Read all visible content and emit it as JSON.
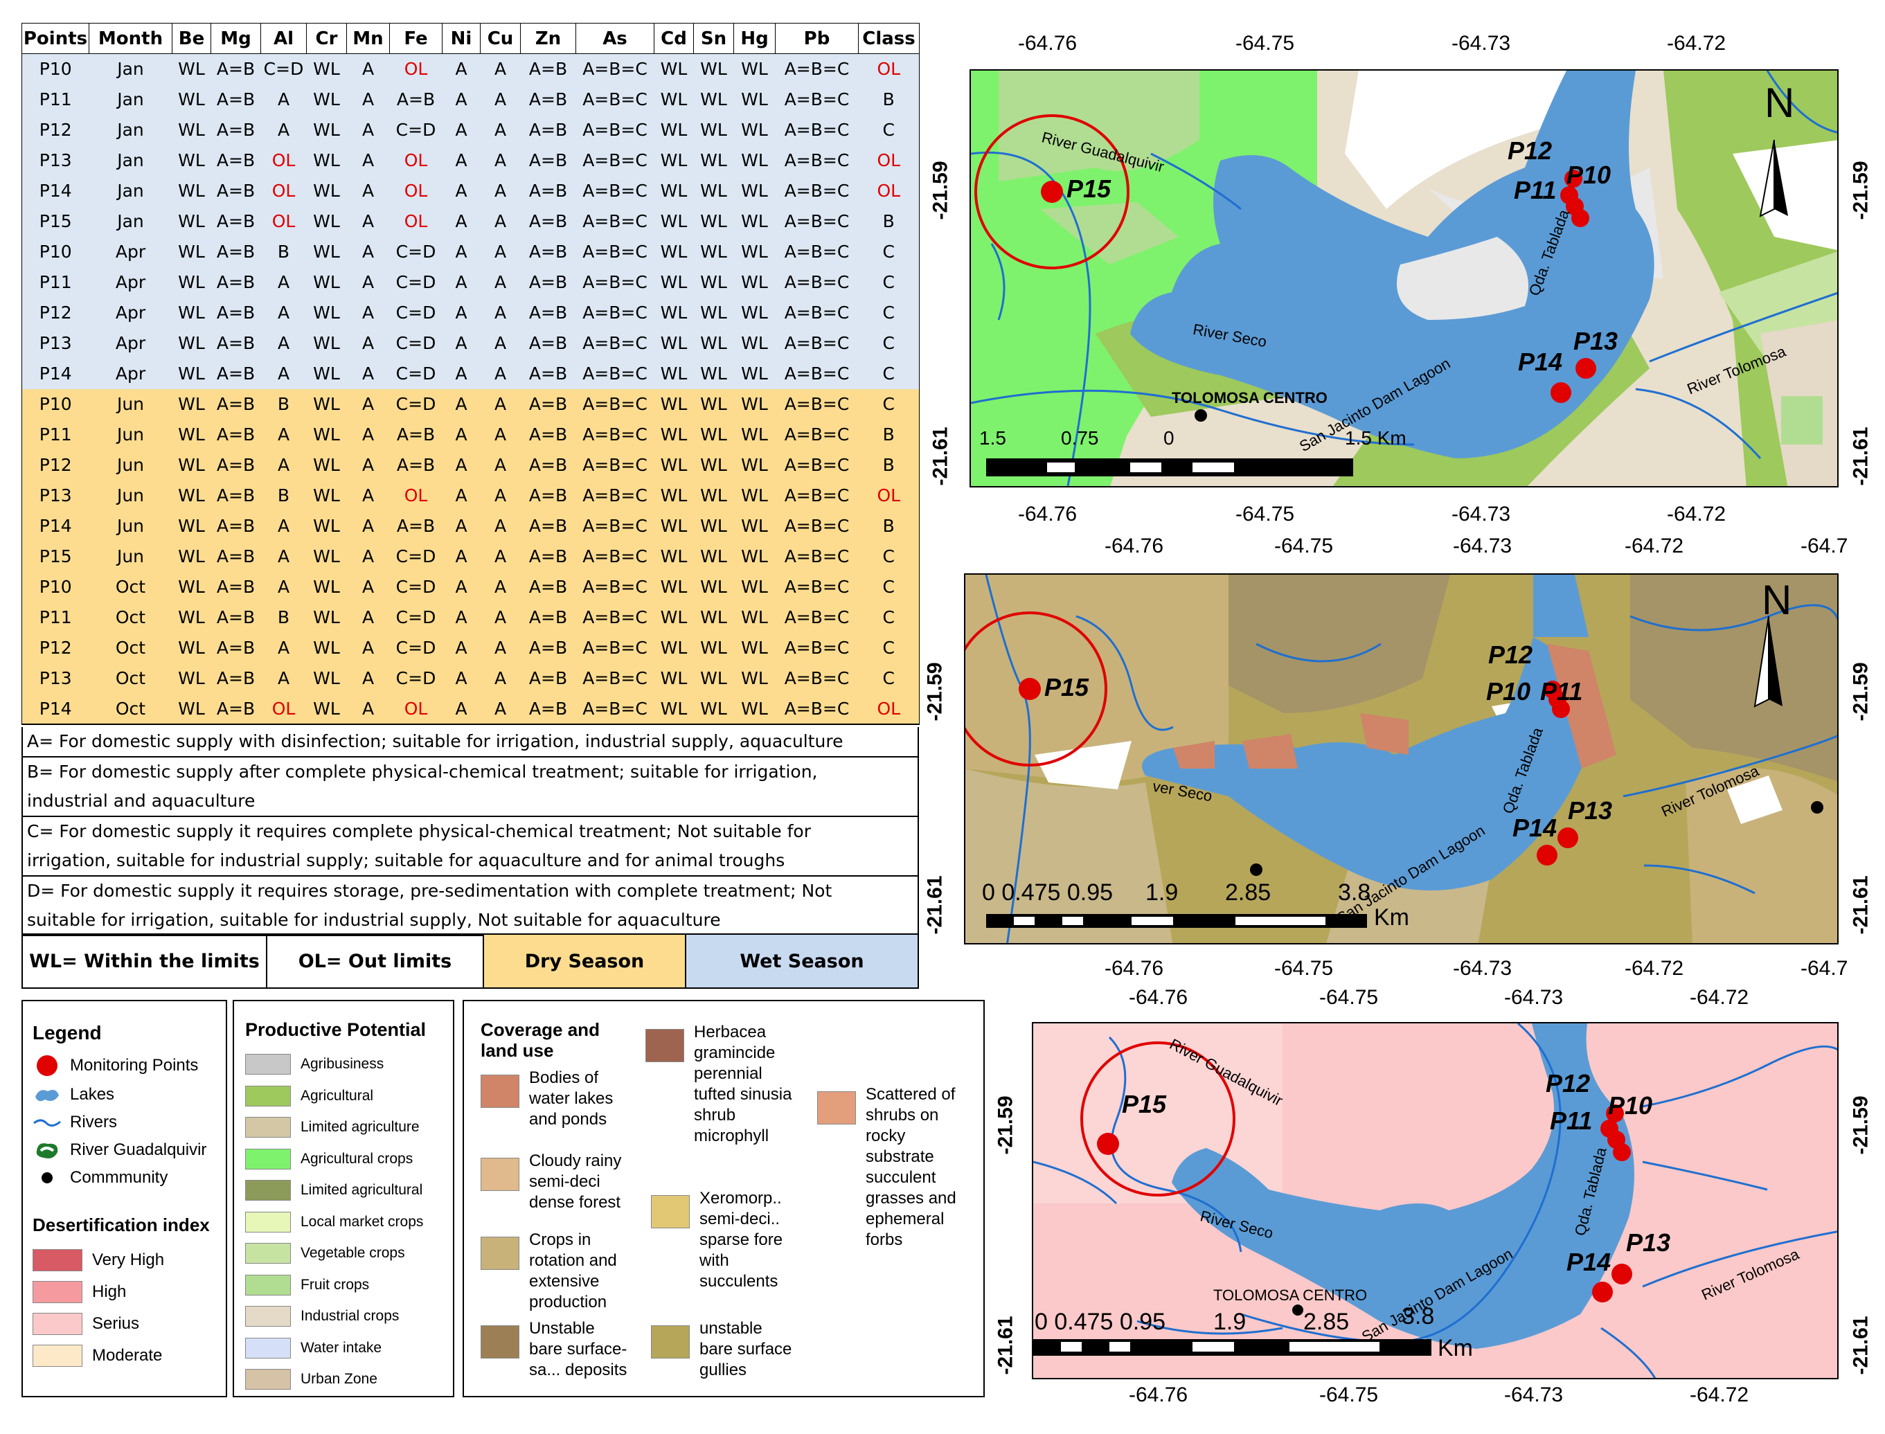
{
  "table": {
    "headers": [
      "Points",
      "Month",
      "Be",
      "Mg",
      "Al",
      "Cr",
      "Mn",
      "Fe",
      "Ni",
      "Cu",
      "Zn",
      "As",
      "Cd",
      "Sn",
      "Hg",
      "Pb",
      "Class"
    ],
    "rows": [
      {
        "season": "wet",
        "cells": [
          "P10",
          "Jan",
          "WL",
          "A=B",
          "C=D",
          "WL",
          "A",
          "OL",
          "A",
          "A",
          "A=B",
          "A=B=C",
          "WL",
          "WL",
          "WL",
          "A=B=C",
          "OL"
        ]
      },
      {
        "season": "wet",
        "cells": [
          "P11",
          "Jan",
          "WL",
          "A=B",
          "A",
          "WL",
          "A",
          "A=B",
          "A",
          "A",
          "A=B",
          "A=B=C",
          "WL",
          "WL",
          "WL",
          "A=B=C",
          "B"
        ]
      },
      {
        "season": "wet",
        "cells": [
          "P12",
          "Jan",
          "WL",
          "A=B",
          "A",
          "WL",
          "A",
          "C=D",
          "A",
          "A",
          "A=B",
          "A=B=C",
          "WL",
          "WL",
          "WL",
          "A=B=C",
          "C"
        ]
      },
      {
        "season": "wet",
        "cells": [
          "P13",
          "Jan",
          "WL",
          "A=B",
          "OL",
          "WL",
          "A",
          "OL",
          "A",
          "A",
          "A=B",
          "A=B=C",
          "WL",
          "WL",
          "WL",
          "A=B=C",
          "OL"
        ]
      },
      {
        "season": "wet",
        "cells": [
          "P14",
          "Jan",
          "WL",
          "A=B",
          "OL",
          "WL",
          "A",
          "OL",
          "A",
          "A",
          "A=B",
          "A=B=C",
          "WL",
          "WL",
          "WL",
          "A=B=C",
          "OL"
        ]
      },
      {
        "season": "wet",
        "cells": [
          "P15",
          "Jan",
          "WL",
          "A=B",
          "OL",
          "WL",
          "A",
          "OL",
          "A",
          "A",
          "A=B",
          "A=B=C",
          "WL",
          "WL",
          "WL",
          "A=B=C",
          "B"
        ]
      },
      {
        "season": "wet",
        "cells": [
          "P10",
          "Apr",
          "WL",
          "A=B",
          "B",
          "WL",
          "A",
          "C=D",
          "A",
          "A",
          "A=B",
          "A=B=C",
          "WL",
          "WL",
          "WL",
          "A=B=C",
          "C"
        ]
      },
      {
        "season": "wet",
        "cells": [
          "P11",
          "Apr",
          "WL",
          "A=B",
          "A",
          "WL",
          "A",
          "C=D",
          "A",
          "A",
          "A=B",
          "A=B=C",
          "WL",
          "WL",
          "WL",
          "A=B=C",
          "C"
        ]
      },
      {
        "season": "wet",
        "cells": [
          "P12",
          "Apr",
          "WL",
          "A=B",
          "A",
          "WL",
          "A",
          "C=D",
          "A",
          "A",
          "A=B",
          "A=B=C",
          "WL",
          "WL",
          "WL",
          "A=B=C",
          "C"
        ]
      },
      {
        "season": "wet",
        "cells": [
          "P13",
          "Apr",
          "WL",
          "A=B",
          "A",
          "WL",
          "A",
          "C=D",
          "A",
          "A",
          "A=B",
          "A=B=C",
          "WL",
          "WL",
          "WL",
          "A=B=C",
          "C"
        ]
      },
      {
        "season": "wet",
        "cells": [
          "P14",
          "Apr",
          "WL",
          "A=B",
          "A",
          "WL",
          "A",
          "C=D",
          "A",
          "A",
          "A=B",
          "A=B=C",
          "WL",
          "WL",
          "WL",
          "A=B=C",
          "C"
        ]
      },
      {
        "season": "dry",
        "cells": [
          "P10",
          "Jun",
          "WL",
          "A=B",
          "B",
          "WL",
          "A",
          "C=D",
          "A",
          "A",
          "A=B",
          "A=B=C",
          "WL",
          "WL",
          "WL",
          "A=B=C",
          "C"
        ]
      },
      {
        "season": "dry",
        "cells": [
          "P11",
          "Jun",
          "WL",
          "A=B",
          "A",
          "WL",
          "A",
          "A=B",
          "A",
          "A",
          "A=B",
          "A=B=C",
          "WL",
          "WL",
          "WL",
          "A=B=C",
          "B"
        ]
      },
      {
        "season": "dry",
        "cells": [
          "P12",
          "Jun",
          "WL",
          "A=B",
          "A",
          "WL",
          "A",
          "A=B",
          "A",
          "A",
          "A=B",
          "A=B=C",
          "WL",
          "WL",
          "WL",
          "A=B=C",
          "B"
        ]
      },
      {
        "season": "dry",
        "cells": [
          "P13",
          "Jun",
          "WL",
          "A=B",
          "B",
          "WL",
          "A",
          "OL",
          "A",
          "A",
          "A=B",
          "A=B=C",
          "WL",
          "WL",
          "WL",
          "A=B=C",
          "OL"
        ]
      },
      {
        "season": "dry",
        "cells": [
          "P14",
          "Jun",
          "WL",
          "A=B",
          "A",
          "WL",
          "A",
          "A=B",
          "A",
          "A",
          "A=B",
          "A=B=C",
          "WL",
          "WL",
          "WL",
          "A=B=C",
          "B"
        ]
      },
      {
        "season": "dry",
        "cells": [
          "P15",
          "Jun",
          "WL",
          "A=B",
          "A",
          "WL",
          "A",
          "C=D",
          "A",
          "A",
          "A=B",
          "A=B=C",
          "WL",
          "WL",
          "WL",
          "A=B=C",
          "C"
        ]
      },
      {
        "season": "dry",
        "cells": [
          "P10",
          "Oct",
          "WL",
          "A=B",
          "A",
          "WL",
          "A",
          "C=D",
          "A",
          "A",
          "A=B",
          "A=B=C",
          "WL",
          "WL",
          "WL",
          "A=B=C",
          "C"
        ]
      },
      {
        "season": "dry",
        "cells": [
          "P11",
          "Oct",
          "WL",
          "A=B",
          "B",
          "WL",
          "A",
          "C=D",
          "A",
          "A",
          "A=B",
          "A=B=C",
          "WL",
          "WL",
          "WL",
          "A=B=C",
          "C"
        ]
      },
      {
        "season": "dry",
        "cells": [
          "P12",
          "Oct",
          "WL",
          "A=B",
          "A",
          "WL",
          "A",
          "C=D",
          "A",
          "A",
          "A=B",
          "A=B=C",
          "WL",
          "WL",
          "WL",
          "A=B=C",
          "C"
        ]
      },
      {
        "season": "dry",
        "cells": [
          "P13",
          "Oct",
          "WL",
          "A=B",
          "A",
          "WL",
          "A",
          "C=D",
          "A",
          "A",
          "A=B",
          "A=B=C",
          "WL",
          "WL",
          "WL",
          "A=B=C",
          "C"
        ]
      },
      {
        "season": "dry",
        "cells": [
          "P14",
          "Oct",
          "WL",
          "A=B",
          "OL",
          "WL",
          "A",
          "OL",
          "A",
          "A",
          "A=B",
          "A=B=C",
          "WL",
          "WL",
          "WL",
          "A=B=C",
          "OL"
        ]
      }
    ],
    "colors": {
      "wet": "#dce7f3",
      "dry": "#fddc8f",
      "out_limits": "#e00000"
    }
  },
  "notes": {
    "a": "A= For domestic supply with disinfection; suitable for irrigation, industrial supply, aquaculture",
    "b1": "B= For domestic supply after complete physical-chemical treatment; suitable for irrigation,",
    "b2": "industrial and aquaculture",
    "c1": "C= For domestic supply it requires complete physical-chemical treatment; Not suitable for",
    "c2": "irrigation, suitable for industrial supply; suitable for aquaculture and for animal troughs",
    "d1": "D= For domestic supply it requires storage, pre-sedimentation with complete treatment; Not",
    "d2": "suitable for irrigation, suitable for industrial supply, Not suitable for aquaculture"
  },
  "key": {
    "wl": "WL= Within the limits",
    "ol": "OL= Out limits",
    "dry": "Dry Season",
    "wet": "Wet Season"
  },
  "legend": {
    "title": "Legend",
    "items": [
      "Monitoring Points",
      "Lakes",
      "Rivers",
      "River Guadalquivir",
      "Commmunity"
    ],
    "desert_title": "Desertification index",
    "desert_items": [
      "Very High",
      "High",
      "Serius",
      "Moderate"
    ],
    "desert_colors": [
      "#d75a64",
      "#f59a9e",
      "#fbc9c9",
      "#fde9c8"
    ]
  },
  "productive": {
    "title": "Productive Potential",
    "items": [
      "Agribusiness",
      "Agricultural",
      "Limited agriculture",
      "Agricultural crops",
      "Limited agricultural",
      "Local market crops",
      "Vegetable crops",
      "Fruit crops",
      "Industrial crops",
      "Water intake",
      "Urban Zone"
    ],
    "colors": [
      "#c8c8c8",
      "#9ec95c",
      "#d3c7a5",
      "#7ef26c",
      "#8c9a5a",
      "#e6f7b8",
      "#c7e3a2",
      "#b1dd92",
      "#e5d9c8",
      "#d5e0f8",
      "#d6c2a6"
    ]
  },
  "coverage": {
    "title1": "Coverage and",
    "title2": "land use",
    "items": [
      {
        "lines": [
          "Bodies of",
          "water lakes",
          "and ponds"
        ],
        "color": "#d08468"
      },
      {
        "lines": [
          "Cloudy rainy",
          "semi-deci",
          "dense forest"
        ],
        "color": "#e0b98c"
      },
      {
        "lines": [
          "Crops in",
          "rotation and",
          "extensive",
          "production"
        ],
        "color": "#c8b27a"
      },
      {
        "lines": [
          "Unstable",
          "bare surface-",
          "sa... deposits"
        ],
        "color": "#9c7f55"
      },
      {
        "lines": [
          "Herbacea",
          "gramincide",
          "perennial",
          "tufted sinusia",
          "shrub",
          "microphyll"
        ],
        "color": "#9e6450"
      },
      {
        "lines": [
          "Xeromorp..",
          "semi-deci..",
          "sparse fore",
          "with",
          "succulents"
        ],
        "color": "#e2c775"
      },
      {
        "lines": [
          "unstable",
          "bare surface",
          "gullies"
        ],
        "color": "#b6a65a"
      },
      {
        "lines": [
          "Scattered of",
          "shrubs on",
          "rocky",
          "substrate",
          "succulent",
          "grasses and",
          "ephemeral",
          "forbs"
        ],
        "color": "#e39e7c"
      }
    ]
  },
  "maps": {
    "top": {
      "x_ticks": [
        "-64.76",
        "-64.75",
        "-64.73",
        "-64.72"
      ],
      "y_ticks": [
        "-21.59",
        "-21.61"
      ],
      "scale_labels": [
        "1.5",
        "0.75",
        "0",
        "1.5 Km"
      ],
      "labels": {
        "river_guad": "River Guadalquivir",
        "river_seco": "River Seco",
        "qda": "Qda. Tablada",
        "lagoon": "San Jacinto Dam Lagoon",
        "tolomosa_river": "River Tolomosa",
        "community": "TOLOMOSA CENTRO",
        "north": "N"
      },
      "points": [
        "P10",
        "P11",
        "P12",
        "P13",
        "P14",
        "P15"
      ]
    },
    "middle": {
      "x_ticks": [
        "-64.76",
        "-64.75",
        "-64.73",
        "-64.72",
        "-64.7"
      ],
      "y_ticks": [
        "-21.59",
        "-21.61"
      ],
      "scale_labels": [
        "0 0.475 0.95",
        "1.9",
        "2.85",
        "3.8",
        "Km"
      ],
      "labels": {
        "river_seco": "ver Seco",
        "qda": "Qda. Tablada",
        "lagoon": "San Jacinto Dam Lagoon",
        "tolomosa_river": "River Tolomosa",
        "north": "N"
      },
      "points": [
        "P10",
        "P11",
        "P12",
        "P13",
        "P14",
        "P15"
      ]
    },
    "bottom": {
      "x_ticks": [
        "-64.76",
        "-64.75",
        "-64.73",
        "-64.72"
      ],
      "y_ticks": [
        "-21.59",
        "-21.61"
      ],
      "scale_labels": [
        "0 0.475 0.95",
        "1.9",
        "2.85",
        "3.8",
        "Km"
      ],
      "labels": {
        "river_guad": "River Guadalquivir",
        "river_seco": "River Seco",
        "qda": "Qda. Tablada",
        "lagoon": "San Jacinto Dam Lagoon",
        "tolomosa_river": "River Tolomosa",
        "community": "TOLOMOSA CENTRO"
      },
      "points": [
        "P10",
        "P11",
        "P12",
        "P13",
        "P14",
        "P15"
      ]
    }
  }
}
